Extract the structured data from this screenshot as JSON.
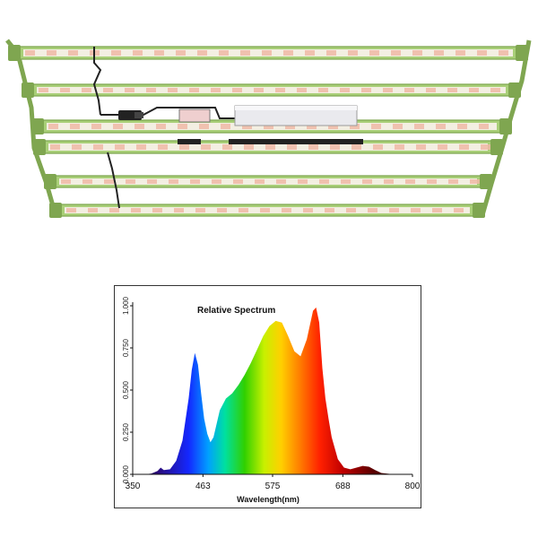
{
  "product": {
    "bar_count": 6,
    "bar_color": "#a9cf78",
    "bar_shade": "#7fa650",
    "diode_white": "#f3efe2",
    "diode_red": "#efb9a6",
    "driver_color": "#e9e9ee",
    "cable_color": "#222222"
  },
  "chart_data": {
    "type": "area",
    "title": "Relative Spectrum",
    "xlabel": "Wavelength(nm)",
    "ylabel": "",
    "xlim": [
      350,
      800
    ],
    "ylim": [
      0,
      1.0
    ],
    "x_ticks": [
      "350",
      "463",
      "575",
      "688",
      "800"
    ],
    "y_ticks": [
      "0.000",
      "0.250",
      "0.500",
      "0.750",
      "1.000"
    ],
    "grid": false,
    "legend": "none",
    "x": [
      350,
      370,
      380,
      390,
      395,
      400,
      410,
      420,
      430,
      440,
      445,
      450,
      455,
      460,
      465,
      470,
      475,
      480,
      485,
      490,
      500,
      510,
      520,
      530,
      540,
      550,
      560,
      570,
      580,
      590,
      600,
      610,
      620,
      630,
      640,
      645,
      650,
      655,
      660,
      665,
      670,
      680,
      690,
      700,
      710,
      720,
      730,
      740,
      750,
      770,
      800
    ],
    "y": [
      0.0,
      0.0,
      0.005,
      0.02,
      0.04,
      0.025,
      0.03,
      0.08,
      0.2,
      0.45,
      0.62,
      0.72,
      0.65,
      0.48,
      0.33,
      0.24,
      0.19,
      0.22,
      0.3,
      0.38,
      0.45,
      0.48,
      0.53,
      0.59,
      0.66,
      0.74,
      0.82,
      0.88,
      0.91,
      0.9,
      0.82,
      0.73,
      0.7,
      0.8,
      0.97,
      0.99,
      0.9,
      0.63,
      0.45,
      0.33,
      0.22,
      0.09,
      0.04,
      0.03,
      0.04,
      0.05,
      0.045,
      0.025,
      0.008,
      0.0,
      0.0
    ]
  }
}
